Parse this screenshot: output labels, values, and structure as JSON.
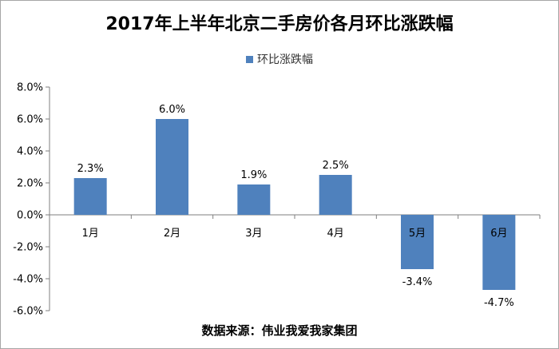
{
  "chart_data": {
    "type": "bar",
    "title": "2017年上半年北京二手房价各月环比涨跌幅",
    "categories": [
      "1月",
      "2月",
      "3月",
      "4月",
      "5月",
      "6月"
    ],
    "series": [
      {
        "name": "环比涨跌幅",
        "values": [
          2.3,
          6.0,
          1.9,
          2.5,
          -3.4,
          -4.7
        ],
        "labels": [
          "2.3%",
          "6.0%",
          "1.9%",
          "2.5%",
          "-3.4%",
          "-4.7%"
        ]
      }
    ],
    "yticks": [
      "8.0%",
      "6.0%",
      "4.0%",
      "2.0%",
      "0.0%",
      "-2.0%",
      "-4.0%",
      "-6.0%"
    ],
    "ylim": [
      -6,
      8
    ],
    "grid": false,
    "legend": "top-center",
    "bar_color": "#4f81bd"
  },
  "source": "数据来源：伟业我爱我家集团"
}
